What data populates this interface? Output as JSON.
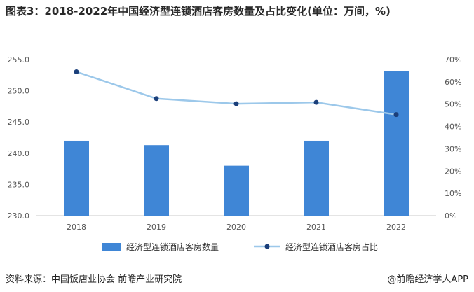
{
  "title": "图表3：2018-2022年中国经济型连锁酒店客房数量及占比变化(单位：万间，%)",
  "footer": {
    "source": "资料来源：中国饭店业协会 前瞻产业研究院",
    "brand": "@前瞻经济学人APP"
  },
  "colors": {
    "bar": "#3f86d6",
    "line": "#9cc8ea",
    "marker": "#1b3f7a"
  },
  "chart_data": {
    "type": "bar",
    "categories": [
      "2018",
      "2019",
      "2020",
      "2021",
      "2022"
    ],
    "series": [
      {
        "name": "经济型连锁酒店客房数量",
        "type": "bar",
        "axis": "left",
        "values": [
          242.0,
          241.3,
          238.0,
          242.0,
          253.2
        ]
      },
      {
        "name": "经济型连锁酒店客房占比",
        "type": "line",
        "axis": "right",
        "values": [
          64.5,
          52.5,
          50.2,
          50.8,
          45.3
        ]
      }
    ],
    "ylim_left": [
      230.0,
      255.0
    ],
    "yticks_left": [
      "230.0",
      "235.0",
      "240.0",
      "245.0",
      "250.0",
      "255.0"
    ],
    "ylim_right": [
      0,
      70
    ],
    "yticks_right": [
      "0%",
      "10%",
      "20%",
      "30%",
      "40%",
      "50%",
      "60%",
      "70%"
    ],
    "legend_position": "bottom"
  }
}
